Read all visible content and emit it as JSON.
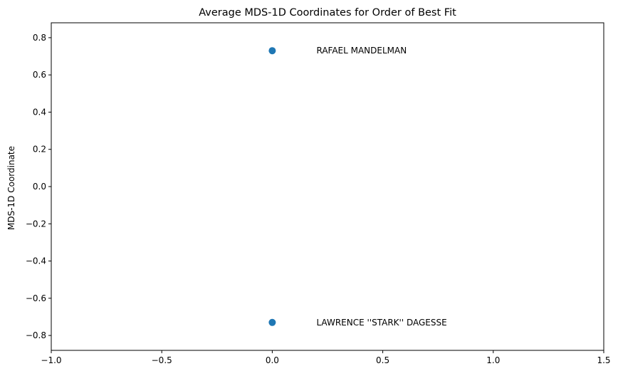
{
  "chart_data": {
    "type": "scatter",
    "title": "Average MDS-1D Coordinates for Order of Best Fit",
    "xlabel": "",
    "ylabel": "MDS-1D Coordinate",
    "xlim": [
      -1.0,
      1.5
    ],
    "ylim": [
      -0.88,
      0.88
    ],
    "xticks": [
      -1.0,
      -0.5,
      0.0,
      0.5,
      1.0,
      1.5
    ],
    "xtick_labels": [
      "−1.0",
      "−0.5",
      "0.0",
      "0.5",
      "1.0",
      "1.5"
    ],
    "yticks": [
      0.8,
      0.6,
      0.4,
      0.2,
      0.0,
      -0.2,
      -0.4,
      -0.6,
      -0.8
    ],
    "ytick_labels": [
      "0.8",
      "0.6",
      "0.4",
      "0.2",
      "0.0",
      "−0.2",
      "−0.4",
      "−0.6",
      "−0.8"
    ],
    "grid": false,
    "points": [
      {
        "x": 0.0,
        "y": 0.73,
        "label": "RAFAEL MANDELMAN",
        "label_x": 0.2
      },
      {
        "x": 0.0,
        "y": -0.73,
        "label": "LAWRENCE ''STARK'' DAGESSE",
        "label_x": 0.2
      }
    ],
    "marker_color": "#1f77b4"
  }
}
